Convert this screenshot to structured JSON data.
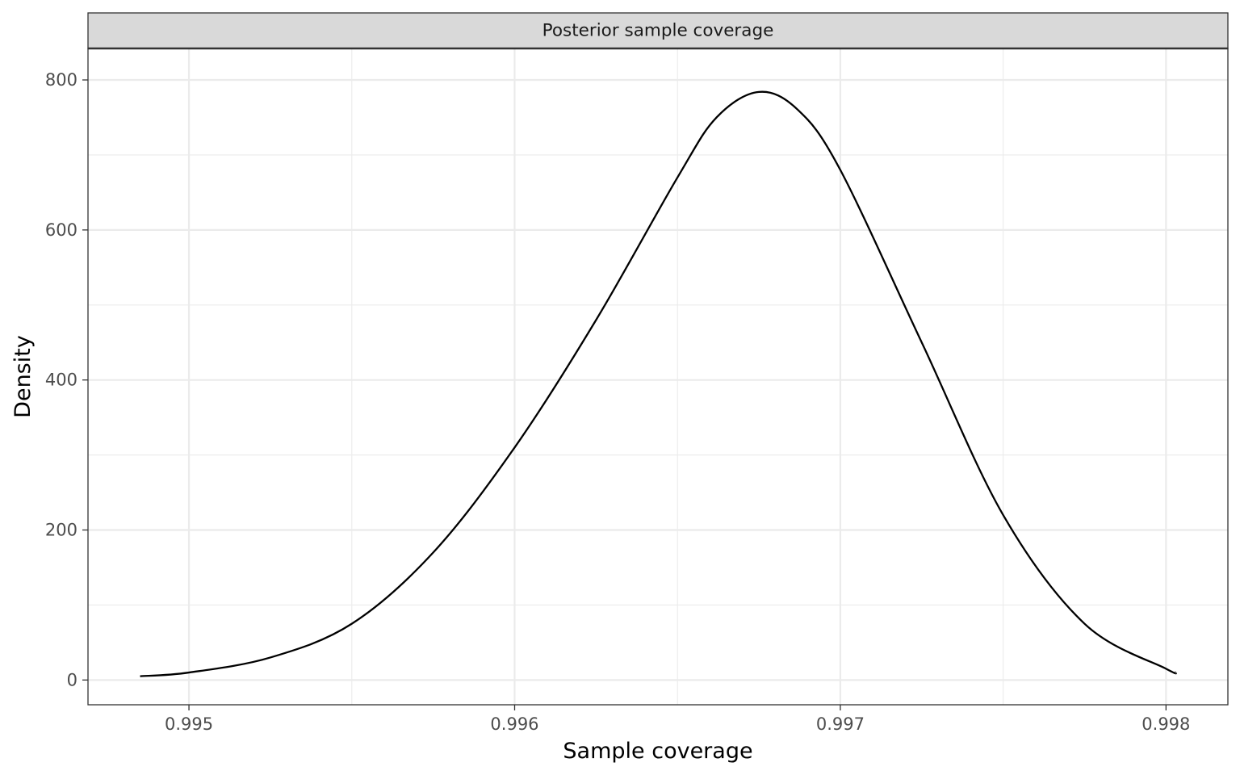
{
  "chart_data": {
    "type": "line",
    "facet_title": "Posterior sample coverage",
    "xlabel": "Sample coverage",
    "ylabel": "Density",
    "xlim": [
      0.99469,
      0.99819
    ],
    "ylim": [
      -33,
      842
    ],
    "x_ticks": [
      0.995,
      0.996,
      0.997,
      0.998
    ],
    "x_tick_labels": [
      "0.995",
      "0.996",
      "0.997",
      "0.998"
    ],
    "y_ticks": [
      0,
      200,
      400,
      600,
      800
    ],
    "y_tick_labels": [
      "0",
      "200",
      "400",
      "600",
      "800"
    ],
    "grid": true,
    "series": [
      {
        "color": "#000000",
        "x": [
          0.99485,
          0.995,
          0.99525,
          0.9955,
          0.99575,
          0.996,
          0.99625,
          0.9965,
          0.99662,
          0.99675,
          0.99687,
          0.997,
          0.99725,
          0.9975,
          0.99775,
          0.998,
          0.99803
        ],
        "y": [
          5,
          10,
          30,
          75,
          170,
          310,
          480,
          670,
          750,
          784,
          760,
          680,
          450,
          220,
          75,
          15,
          10
        ]
      }
    ]
  }
}
